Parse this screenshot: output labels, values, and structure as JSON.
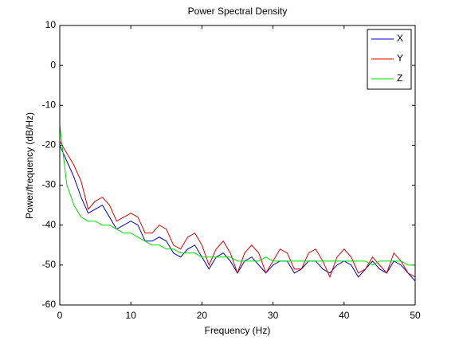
{
  "chart_data": {
    "type": "line",
    "title": "Power Spectral Density",
    "xlabel": "Frequency (Hz)",
    "ylabel": "Power/frequency (dB/Hz)",
    "x": [
      0,
      1,
      2,
      3,
      4,
      5,
      6,
      7,
      8,
      9,
      10,
      11,
      12,
      13,
      14,
      15,
      16,
      17,
      18,
      19,
      20,
      21,
      22,
      23,
      24,
      25,
      26,
      27,
      28,
      29,
      30,
      31,
      32,
      33,
      34,
      35,
      36,
      37,
      38,
      39,
      40,
      41,
      42,
      43,
      44,
      45,
      46,
      47,
      48,
      49,
      50
    ],
    "series": [
      {
        "name": "X",
        "color": "#0000cc",
        "values": [
          -20,
          -24,
          -28,
          -33,
          -37,
          -36,
          -35,
          -38,
          -41,
          -40,
          -39,
          -40,
          -44,
          -44,
          -43,
          -44,
          -47,
          -48,
          -46,
          -45,
          -48,
          -51,
          -48,
          -47,
          -49,
          -52,
          -49,
          -48,
          -50,
          -52,
          -50,
          -49,
          -49,
          -52,
          -51,
          -49,
          -49,
          -51,
          -52,
          -50,
          -49,
          -50,
          -53,
          -51,
          -49,
          -51,
          -52,
          -49,
          -50,
          -52,
          -54
        ]
      },
      {
        "name": "Y",
        "color": "#dd0000",
        "values": [
          -19,
          -22,
          -25,
          -29,
          -36,
          -34,
          -33,
          -35,
          -39,
          -38,
          -37,
          -38,
          -42,
          -42,
          -40,
          -41,
          -45,
          -46,
          -43,
          -42,
          -45,
          -50,
          -46,
          -44,
          -47,
          -52,
          -47,
          -45,
          -47,
          -52,
          -49,
          -46,
          -47,
          -51,
          -51,
          -47,
          -46,
          -49,
          -53,
          -48,
          -46,
          -48,
          -52,
          -51,
          -48,
          -50,
          -52,
          -47,
          -49,
          -52,
          -53
        ]
      },
      {
        "name": "Z",
        "color": "#00dd00",
        "values": [
          -15,
          -30,
          -35,
          -38,
          -39,
          -39,
          -40,
          -40,
          -41,
          -42,
          -42,
          -43,
          -44,
          -45,
          -45,
          -46,
          -46,
          -47,
          -47,
          -47,
          -48,
          -48,
          -48,
          -48,
          -48,
          -49,
          -49,
          -49,
          -49,
          -48,
          -49,
          -49,
          -49,
          -49,
          -49,
          -49,
          -49,
          -49,
          -49,
          -49,
          -49,
          -49,
          -49,
          -49,
          -50,
          -49,
          -49,
          -49,
          -49,
          -50,
          -50
        ]
      }
    ],
    "xlim": [
      0,
      50
    ],
    "xticks": [
      0,
      10,
      20,
      30,
      40,
      50
    ],
    "ylim": [
      -60,
      10
    ],
    "yticks": [
      -60,
      -50,
      -40,
      -30,
      -20,
      -10,
      0,
      10
    ],
    "legend": "northeast"
  }
}
